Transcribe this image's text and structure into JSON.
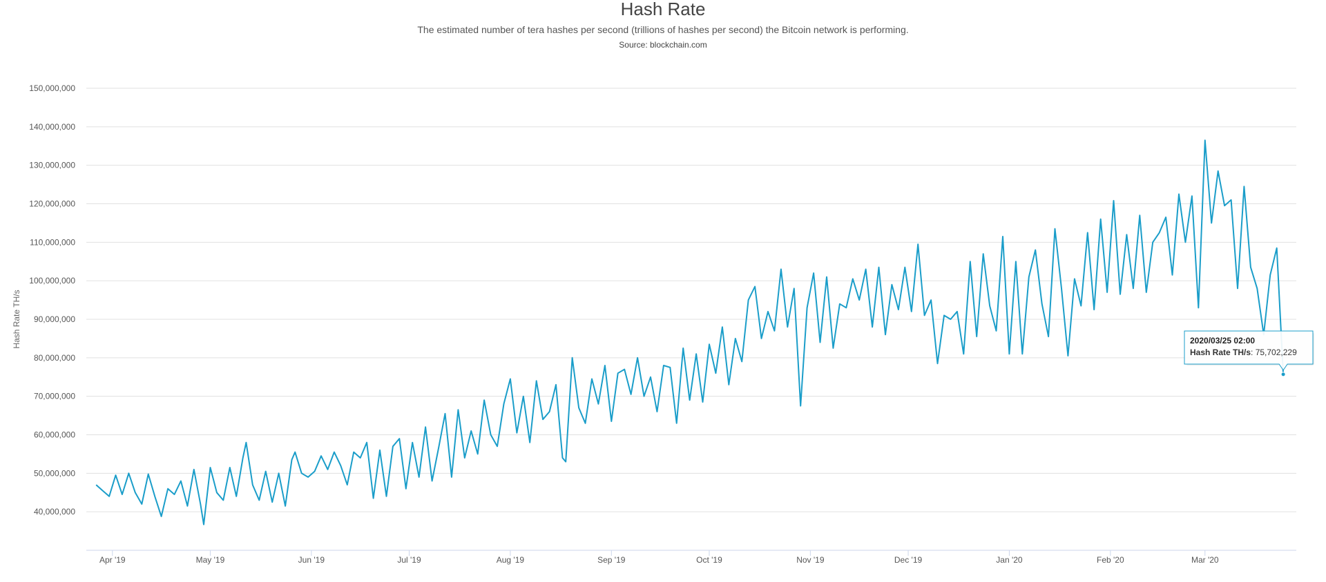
{
  "chart_data": {
    "type": "line",
    "title": "Hash Rate",
    "subtitle": "The estimated number of tera hashes per second (trillions of hashes per second) the Bitcoin network is performing.",
    "source": "Source: blockchain.com",
    "ylabel": "Hash Rate TH/s",
    "xlabel": "",
    "ylim": [
      30000000,
      150000000
    ],
    "yticks": [
      40000000,
      50000000,
      60000000,
      70000000,
      80000000,
      90000000,
      100000000,
      110000000,
      120000000,
      130000000,
      140000000,
      150000000
    ],
    "ytick_labels": [
      "40,000,000",
      "50,000,000",
      "60,000,000",
      "70,000,000",
      "80,000,000",
      "90,000,000",
      "100,000,000",
      "110,000,000",
      "120,000,000",
      "130,000,000",
      "140,000,000",
      "150,000,000"
    ],
    "xlim": [
      "2019-03-24",
      "2020-03-29"
    ],
    "xticks": [
      "2019-04-01",
      "2019-05-01",
      "2019-06-01",
      "2019-07-01",
      "2019-08-01",
      "2019-09-01",
      "2019-10-01",
      "2019-11-01",
      "2019-12-01",
      "2020-01-01",
      "2020-02-01",
      "2020-03-01"
    ],
    "xtick_labels": [
      "Apr '19",
      "May '19",
      "Jun '19",
      "Jul '19",
      "Aug '19",
      "Sep '19",
      "Oct '19",
      "Nov '19",
      "Dec '19",
      "Jan '20",
      "Feb '20",
      "Mar '20"
    ],
    "grid": true,
    "legend": "none",
    "colors": {
      "line": "#1a9dc9",
      "grid": "#e0e0e0",
      "tooltip_border": "#1a9dc9"
    },
    "series": [
      {
        "name": "Hash Rate TH/s",
        "points": [
          [
            "2019-03-27",
            47.0
          ],
          [
            "2019-03-29",
            45.5
          ],
          [
            "2019-03-31",
            44.0
          ],
          [
            "2019-04-02",
            49.5
          ],
          [
            "2019-04-04",
            44.5
          ],
          [
            "2019-04-06",
            50.0
          ],
          [
            "2019-04-08",
            45.0
          ],
          [
            "2019-04-10",
            42.0
          ],
          [
            "2019-04-12",
            49.8
          ],
          [
            "2019-04-14",
            44.0
          ],
          [
            "2019-04-16",
            38.8
          ],
          [
            "2019-04-18",
            46.0
          ],
          [
            "2019-04-20",
            44.5
          ],
          [
            "2019-04-22",
            48.0
          ],
          [
            "2019-04-24",
            41.5
          ],
          [
            "2019-04-26",
            51.0
          ],
          [
            "2019-04-28",
            42.0
          ],
          [
            "2019-04-29",
            36.7
          ],
          [
            "2019-05-01",
            51.5
          ],
          [
            "2019-05-03",
            45.0
          ],
          [
            "2019-05-05",
            43.0
          ],
          [
            "2019-05-07",
            51.5
          ],
          [
            "2019-05-09",
            44.0
          ],
          [
            "2019-05-11",
            54.0
          ],
          [
            "2019-05-12",
            58.0
          ],
          [
            "2019-05-14",
            47.0
          ],
          [
            "2019-05-16",
            43.0
          ],
          [
            "2019-05-18",
            50.5
          ],
          [
            "2019-05-20",
            42.5
          ],
          [
            "2019-05-22",
            50.0
          ],
          [
            "2019-05-24",
            41.5
          ],
          [
            "2019-05-26",
            53.5
          ],
          [
            "2019-05-27",
            55.5
          ],
          [
            "2019-05-29",
            50.0
          ],
          [
            "2019-05-31",
            49.0
          ],
          [
            "2019-06-02",
            50.5
          ],
          [
            "2019-06-04",
            54.5
          ],
          [
            "2019-06-06",
            51.0
          ],
          [
            "2019-06-08",
            55.5
          ],
          [
            "2019-06-10",
            52.0
          ],
          [
            "2019-06-12",
            47.0
          ],
          [
            "2019-06-14",
            55.5
          ],
          [
            "2019-06-16",
            54.0
          ],
          [
            "2019-06-18",
            58.0
          ],
          [
            "2019-06-20",
            43.5
          ],
          [
            "2019-06-22",
            56.0
          ],
          [
            "2019-06-24",
            44.0
          ],
          [
            "2019-06-26",
            57.0
          ],
          [
            "2019-06-28",
            59.0
          ],
          [
            "2019-06-30",
            46.0
          ],
          [
            "2019-07-02",
            58.0
          ],
          [
            "2019-07-04",
            49.0
          ],
          [
            "2019-07-06",
            62.0
          ],
          [
            "2019-07-08",
            48.0
          ],
          [
            "2019-07-10",
            56.5
          ],
          [
            "2019-07-12",
            65.5
          ],
          [
            "2019-07-14",
            49.0
          ],
          [
            "2019-07-16",
            66.5
          ],
          [
            "2019-07-18",
            54.0
          ],
          [
            "2019-07-20",
            61.0
          ],
          [
            "2019-07-22",
            55.0
          ],
          [
            "2019-07-24",
            69.0
          ],
          [
            "2019-07-26",
            60.0
          ],
          [
            "2019-07-28",
            57.0
          ],
          [
            "2019-07-30",
            68.0
          ],
          [
            "2019-08-01",
            74.5
          ],
          [
            "2019-08-03",
            60.5
          ],
          [
            "2019-08-05",
            70.0
          ],
          [
            "2019-08-07",
            58.0
          ],
          [
            "2019-08-09",
            74.0
          ],
          [
            "2019-08-11",
            64.0
          ],
          [
            "2019-08-13",
            66.0
          ],
          [
            "2019-08-15",
            73.0
          ],
          [
            "2019-08-17",
            54.0
          ],
          [
            "2019-08-18",
            53.0
          ],
          [
            "2019-08-20",
            80.0
          ],
          [
            "2019-08-22",
            67.0
          ],
          [
            "2019-08-24",
            63.0
          ],
          [
            "2019-08-26",
            74.5
          ],
          [
            "2019-08-28",
            68.0
          ],
          [
            "2019-08-30",
            78.0
          ],
          [
            "2019-09-01",
            63.5
          ],
          [
            "2019-09-03",
            76.0
          ],
          [
            "2019-09-05",
            77.0
          ],
          [
            "2019-09-07",
            70.5
          ],
          [
            "2019-09-09",
            80.0
          ],
          [
            "2019-09-11",
            70.0
          ],
          [
            "2019-09-13",
            75.0
          ],
          [
            "2019-09-15",
            66.0
          ],
          [
            "2019-09-17",
            78.0
          ],
          [
            "2019-09-19",
            77.5
          ],
          [
            "2019-09-21",
            63.0
          ],
          [
            "2019-09-23",
            82.5
          ],
          [
            "2019-09-25",
            69.0
          ],
          [
            "2019-09-27",
            81.0
          ],
          [
            "2019-09-29",
            68.5
          ],
          [
            "2019-10-01",
            83.5
          ],
          [
            "2019-10-03",
            76.0
          ],
          [
            "2019-10-05",
            88.0
          ],
          [
            "2019-10-07",
            73.0
          ],
          [
            "2019-10-09",
            85.0
          ],
          [
            "2019-10-11",
            79.0
          ],
          [
            "2019-10-13",
            95.0
          ],
          [
            "2019-10-15",
            98.5
          ],
          [
            "2019-10-17",
            85.0
          ],
          [
            "2019-10-19",
            92.0
          ],
          [
            "2019-10-21",
            87.0
          ],
          [
            "2019-10-23",
            103.0
          ],
          [
            "2019-10-25",
            88.0
          ],
          [
            "2019-10-27",
            98.0
          ],
          [
            "2019-10-29",
            67.5
          ],
          [
            "2019-10-31",
            93.0
          ],
          [
            "2019-11-02",
            102.0
          ],
          [
            "2019-11-04",
            84.0
          ],
          [
            "2019-11-06",
            101.0
          ],
          [
            "2019-11-08",
            82.5
          ],
          [
            "2019-11-10",
            94.0
          ],
          [
            "2019-11-12",
            93.0
          ],
          [
            "2019-11-14",
            100.5
          ],
          [
            "2019-11-16",
            95.0
          ],
          [
            "2019-11-18",
            103.0
          ],
          [
            "2019-11-20",
            88.0
          ],
          [
            "2019-11-22",
            103.5
          ],
          [
            "2019-11-24",
            86.0
          ],
          [
            "2019-11-26",
            99.0
          ],
          [
            "2019-11-28",
            92.5
          ],
          [
            "2019-11-30",
            103.5
          ],
          [
            "2019-12-02",
            92.0
          ],
          [
            "2019-12-04",
            109.5
          ],
          [
            "2019-12-06",
            91.0
          ],
          [
            "2019-12-08",
            95.0
          ],
          [
            "2019-12-10",
            78.5
          ],
          [
            "2019-12-12",
            91.0
          ],
          [
            "2019-12-14",
            90.0
          ],
          [
            "2019-12-16",
            92.0
          ],
          [
            "2019-12-18",
            81.0
          ],
          [
            "2019-12-20",
            105.0
          ],
          [
            "2019-12-22",
            85.5
          ],
          [
            "2019-12-24",
            107.0
          ],
          [
            "2019-12-26",
            93.5
          ],
          [
            "2019-12-28",
            87.0
          ],
          [
            "2019-12-30",
            111.5
          ],
          [
            "2020-01-01",
            81.0
          ],
          [
            "2020-01-03",
            105.0
          ],
          [
            "2020-01-05",
            81.0
          ],
          [
            "2020-01-07",
            101.0
          ],
          [
            "2020-01-09",
            108.0
          ],
          [
            "2020-01-11",
            94.0
          ],
          [
            "2020-01-13",
            85.5
          ],
          [
            "2020-01-15",
            113.5
          ],
          [
            "2020-01-17",
            98.0
          ],
          [
            "2020-01-19",
            80.5
          ],
          [
            "2020-01-21",
            100.5
          ],
          [
            "2020-01-23",
            93.5
          ],
          [
            "2020-01-25",
            112.5
          ],
          [
            "2020-01-27",
            92.5
          ],
          [
            "2020-01-29",
            116.0
          ],
          [
            "2020-01-31",
            97.0
          ],
          [
            "2020-02-02",
            120.8
          ],
          [
            "2020-02-04",
            96.5
          ],
          [
            "2020-02-06",
            112.0
          ],
          [
            "2020-02-08",
            98.0
          ],
          [
            "2020-02-10",
            117.0
          ],
          [
            "2020-02-12",
            97.0
          ],
          [
            "2020-02-14",
            110.0
          ],
          [
            "2020-02-16",
            112.5
          ],
          [
            "2020-02-18",
            116.5
          ],
          [
            "2020-02-20",
            101.5
          ],
          [
            "2020-02-22",
            122.5
          ],
          [
            "2020-02-24",
            110.0
          ],
          [
            "2020-02-26",
            122.0
          ],
          [
            "2020-02-28",
            93.0
          ],
          [
            "2020-03-01",
            136.5
          ],
          [
            "2020-03-03",
            115.0
          ],
          [
            "2020-03-05",
            128.5
          ],
          [
            "2020-03-07",
            119.5
          ],
          [
            "2020-03-09",
            121.0
          ],
          [
            "2020-03-11",
            98.0
          ],
          [
            "2020-03-13",
            124.5
          ],
          [
            "2020-03-15",
            103.5
          ],
          [
            "2020-03-17",
            98.0
          ],
          [
            "2020-03-19",
            86.0
          ],
          [
            "2020-03-21",
            101.5
          ],
          [
            "2020-03-23",
            108.5
          ],
          [
            "2020-03-25",
            75.7
          ]
        ],
        "unit_multiplier": 1000000
      }
    ],
    "tooltip": {
      "x": "2020-03-25",
      "y": 75702229,
      "title": "2020/03/25 02:00",
      "label": "Hash Rate TH/s",
      "value": "75,702,229"
    }
  }
}
